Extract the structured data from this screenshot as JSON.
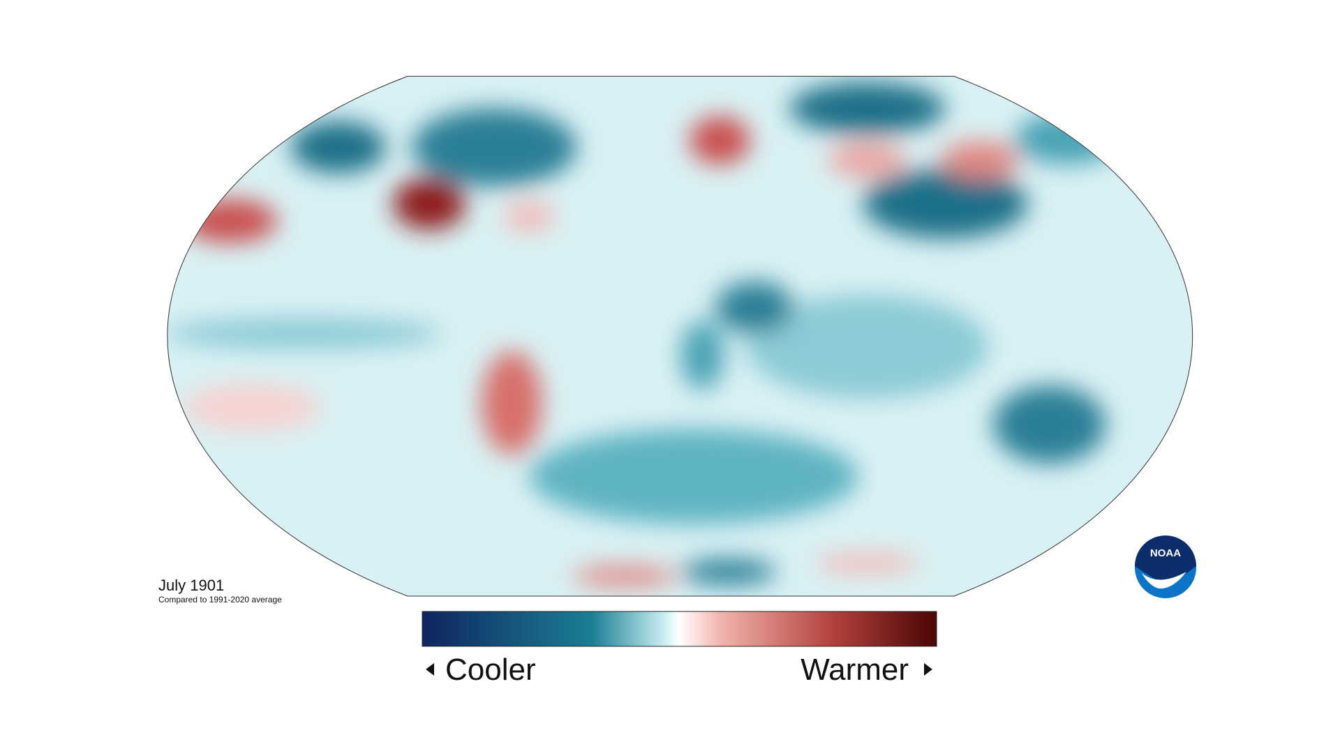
{
  "caption": {
    "title": "July 1901",
    "subtitle": "Compared to 1991-2020 average"
  },
  "legend": {
    "low": "Cooler",
    "high": "Warmer"
  },
  "logo": {
    "text": "NOAA"
  }
}
